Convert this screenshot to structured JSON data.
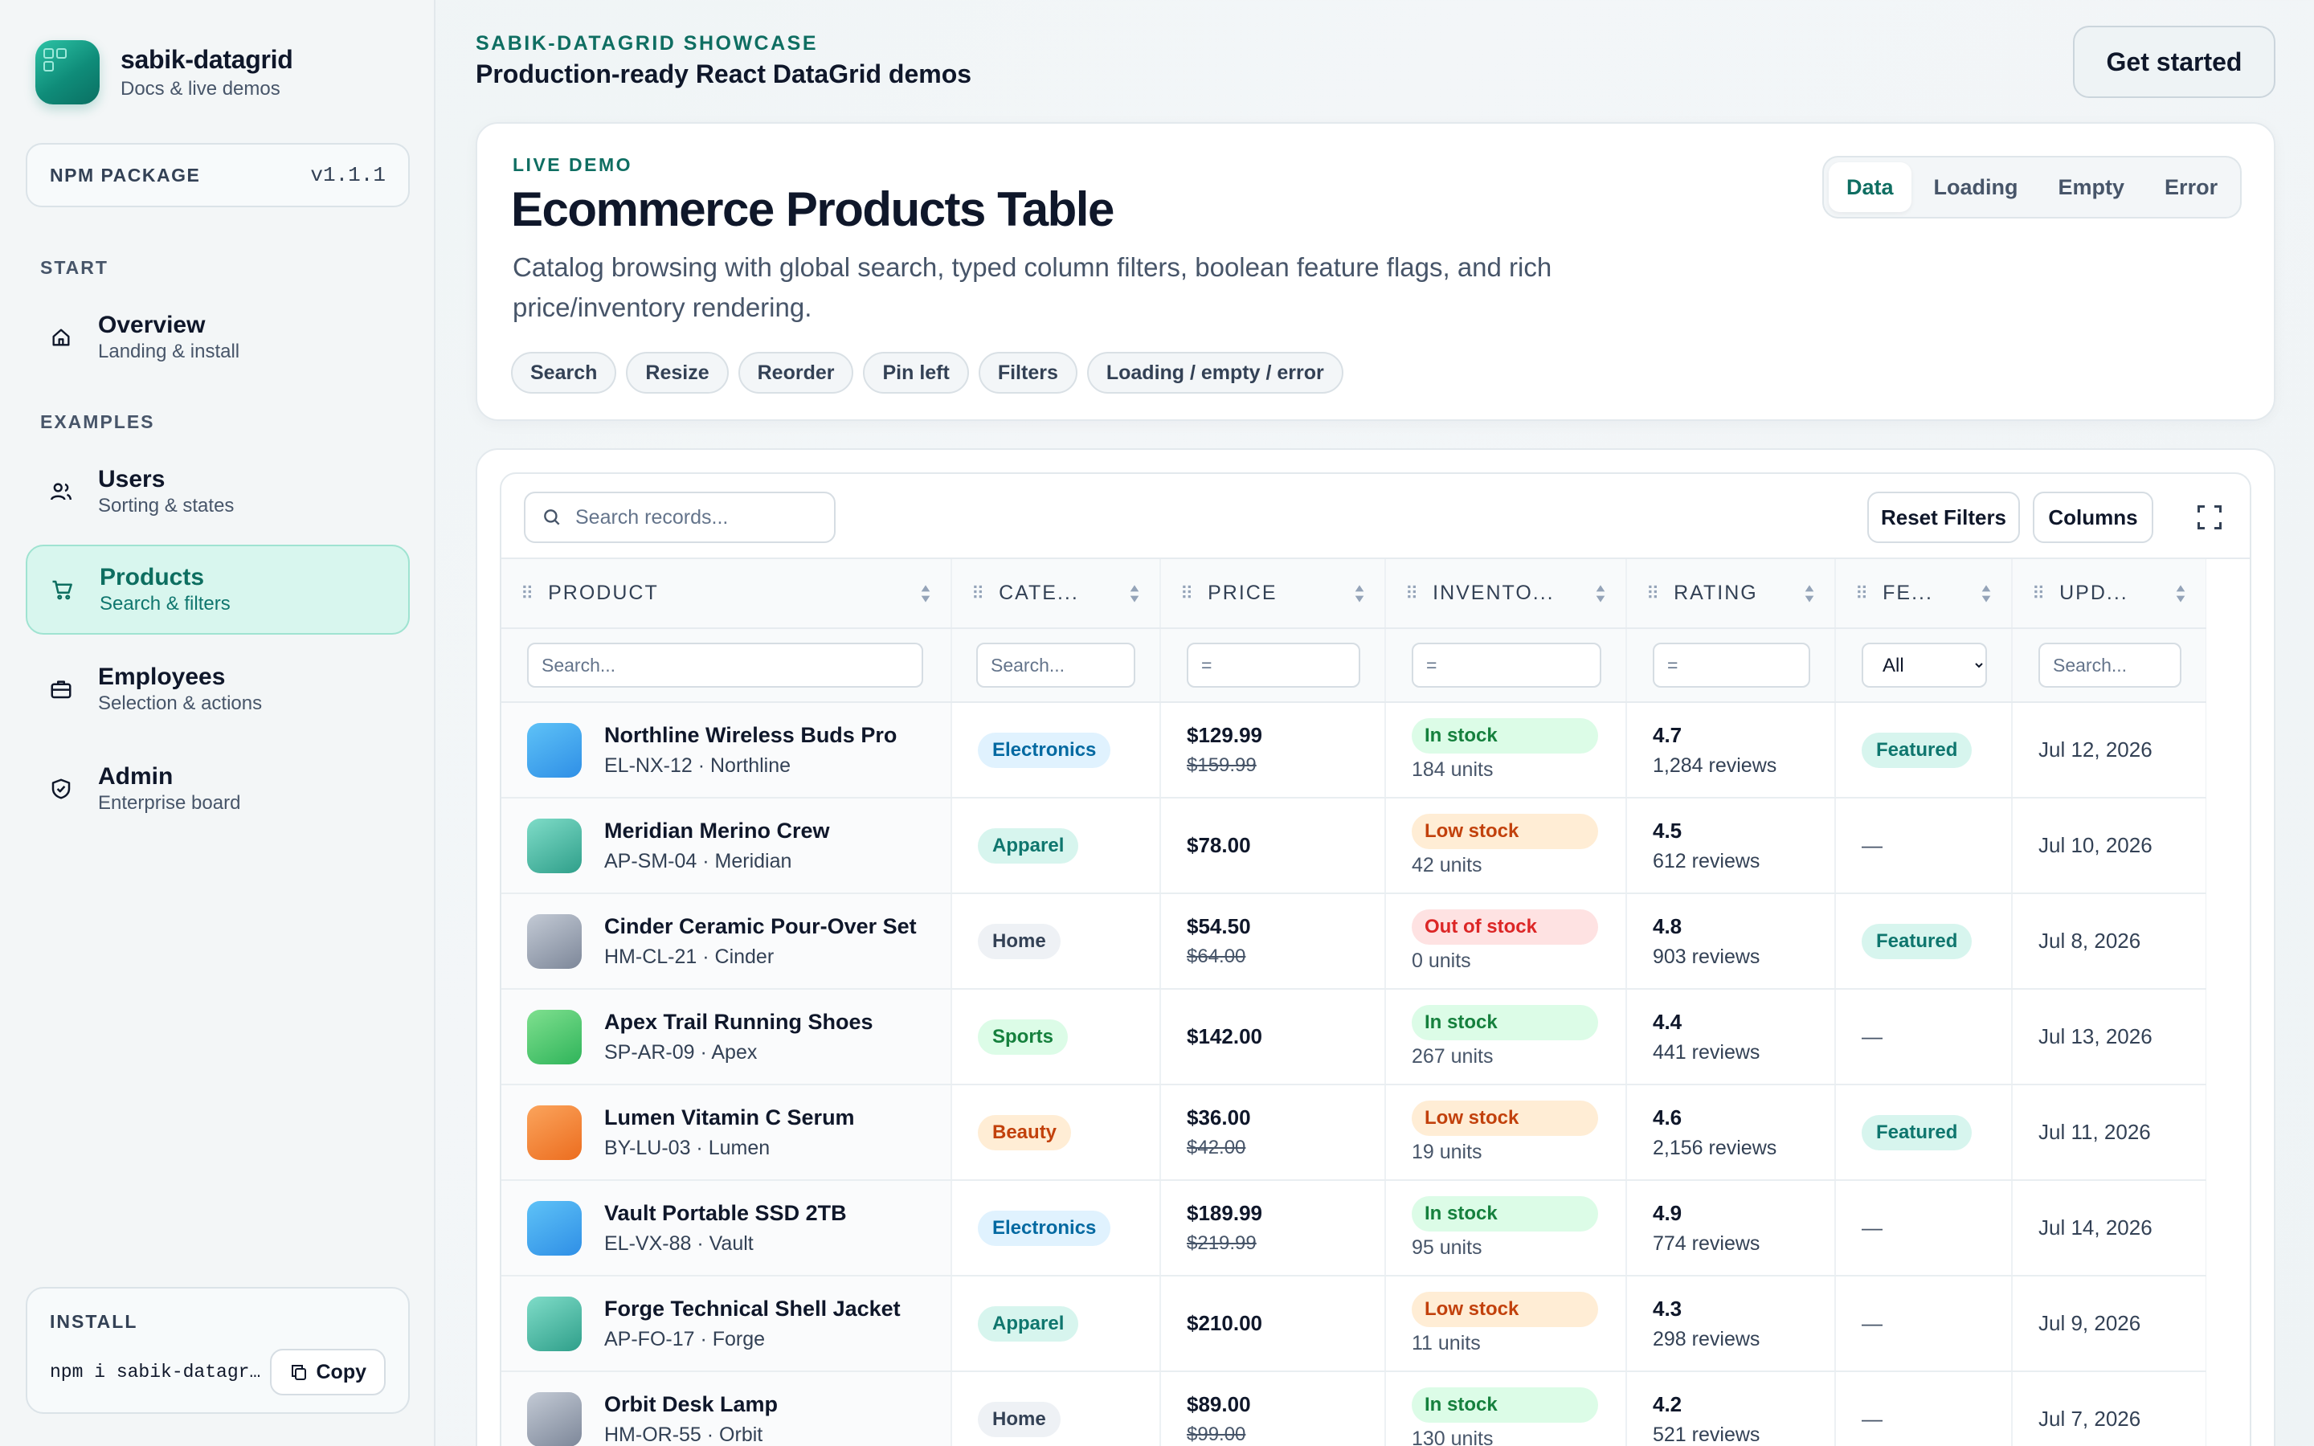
{
  "brand": {
    "name": "sabik-datagrid",
    "subtitle": "Docs & live demos"
  },
  "npm": {
    "label": "NPM PACKAGE",
    "version": "v1.1.1"
  },
  "sidebar": {
    "section_start": "START",
    "section_examples": "EXAMPLES",
    "items": [
      {
        "title": "Overview",
        "subtitle": "Landing & install",
        "icon": "home-icon"
      },
      {
        "title": "Users",
        "subtitle": "Sorting & states",
        "icon": "users-icon"
      },
      {
        "title": "Products",
        "subtitle": "Search & filters",
        "icon": "cart-icon",
        "active": true
      },
      {
        "title": "Employees",
        "subtitle": "Selection & actions",
        "icon": "briefcase-icon"
      },
      {
        "title": "Admin",
        "subtitle": "Enterprise board",
        "icon": "shield-icon"
      }
    ]
  },
  "install": {
    "label": "INSTALL",
    "command": "npm i sabik-datagr…",
    "copy_label": "Copy"
  },
  "header": {
    "eyebrow": "SABIK-DATAGRID SHOWCASE",
    "title": "Production-ready React DataGrid demos",
    "cta": "Get started"
  },
  "demo": {
    "eyebrow": "LIVE DEMO",
    "title": "Ecommerce Products Table",
    "description": "Catalog browsing with global search, typed column filters, boolean feature flags, and rich price/inventory rendering.",
    "chips": [
      "Search",
      "Resize",
      "Reorder",
      "Pin left",
      "Filters",
      "Loading / empty / error"
    ],
    "state_tabs": [
      "Data",
      "Loading",
      "Empty",
      "Error"
    ],
    "active_state": "Data"
  },
  "toolbar": {
    "search_placeholder": "Search records...",
    "reset_label": "Reset Filters",
    "columns_label": "Columns"
  },
  "columns": [
    "PRODUCT",
    "CATE...",
    "PRICE",
    "INVENTO...",
    "RATING",
    "FE...",
    "UPD..."
  ],
  "filters": {
    "product": "Search...",
    "category": "Search...",
    "price": "=",
    "inventory": "=",
    "rating": "=",
    "featured": "All",
    "updated": "Search..."
  },
  "colors": {
    "accent": "#0f6e62",
    "electronics": "#0369a1",
    "apparel": "#0f766e",
    "home": "#334155",
    "sports": "#15803d",
    "beauty": "#c2410c",
    "in_stock": "#15803d",
    "low_stock": "#c2410c",
    "out_of_stock": "#dc2626"
  },
  "rows": [
    {
      "name": "Northline Wireless Buds Pro",
      "sku": "EL-NX-12 · Northline",
      "thumb": "blue",
      "category": "Electronics",
      "price": "$129.99",
      "old_price": "$159.99",
      "stock": "In stock",
      "units": "184 units",
      "rating": "4.7",
      "reviews": "1,284 reviews",
      "featured": "Featured",
      "updated": "Jul 12, 2026"
    },
    {
      "name": "Meridian Merino Crew",
      "sku": "AP-SM-04 · Meridian",
      "thumb": "teal",
      "category": "Apparel",
      "price": "$78.00",
      "old_price": "",
      "stock": "Low stock",
      "units": "42 units",
      "rating": "4.5",
      "reviews": "612 reviews",
      "featured": "—",
      "updated": "Jul 10, 2026"
    },
    {
      "name": "Cinder Ceramic Pour-Over Set",
      "sku": "HM-CL-21 · Cinder",
      "thumb": "gray",
      "category": "Home",
      "price": "$54.50",
      "old_price": "$64.00",
      "stock": "Out of stock",
      "units": "0 units",
      "rating": "4.8",
      "reviews": "903 reviews",
      "featured": "Featured",
      "updated": "Jul 8, 2026"
    },
    {
      "name": "Apex Trail Running Shoes",
      "sku": "SP-AR-09 · Apex",
      "thumb": "green",
      "category": "Sports",
      "price": "$142.00",
      "old_price": "",
      "stock": "In stock",
      "units": "267 units",
      "rating": "4.4",
      "reviews": "441 reviews",
      "featured": "—",
      "updated": "Jul 13, 2026"
    },
    {
      "name": "Lumen Vitamin C Serum",
      "sku": "BY-LU-03 · Lumen",
      "thumb": "orange",
      "category": "Beauty",
      "price": "$36.00",
      "old_price": "$42.00",
      "stock": "Low stock",
      "units": "19 units",
      "rating": "4.6",
      "reviews": "2,156 reviews",
      "featured": "Featured",
      "updated": "Jul 11, 2026"
    },
    {
      "name": "Vault Portable SSD 2TB",
      "sku": "EL-VX-88 · Vault",
      "thumb": "blue",
      "category": "Electronics",
      "price": "$189.99",
      "old_price": "$219.99",
      "stock": "In stock",
      "units": "95 units",
      "rating": "4.9",
      "reviews": "774 reviews",
      "featured": "—",
      "updated": "Jul 14, 2026"
    },
    {
      "name": "Forge Technical Shell Jacket",
      "sku": "AP-FO-17 · Forge",
      "thumb": "teal",
      "category": "Apparel",
      "price": "$210.00",
      "old_price": "",
      "stock": "Low stock",
      "units": "11 units",
      "rating": "4.3",
      "reviews": "298 reviews",
      "featured": "—",
      "updated": "Jul 9, 2026"
    },
    {
      "name": "Orbit Desk Lamp",
      "sku": "HM-OR-55 · Orbit",
      "thumb": "gray",
      "category": "Home",
      "price": "$89.00",
      "old_price": "$99.00",
      "stock": "In stock",
      "units": "130 units",
      "rating": "4.2",
      "reviews": "521 reviews",
      "featured": "—",
      "updated": "Jul 7, 2026"
    }
  ]
}
